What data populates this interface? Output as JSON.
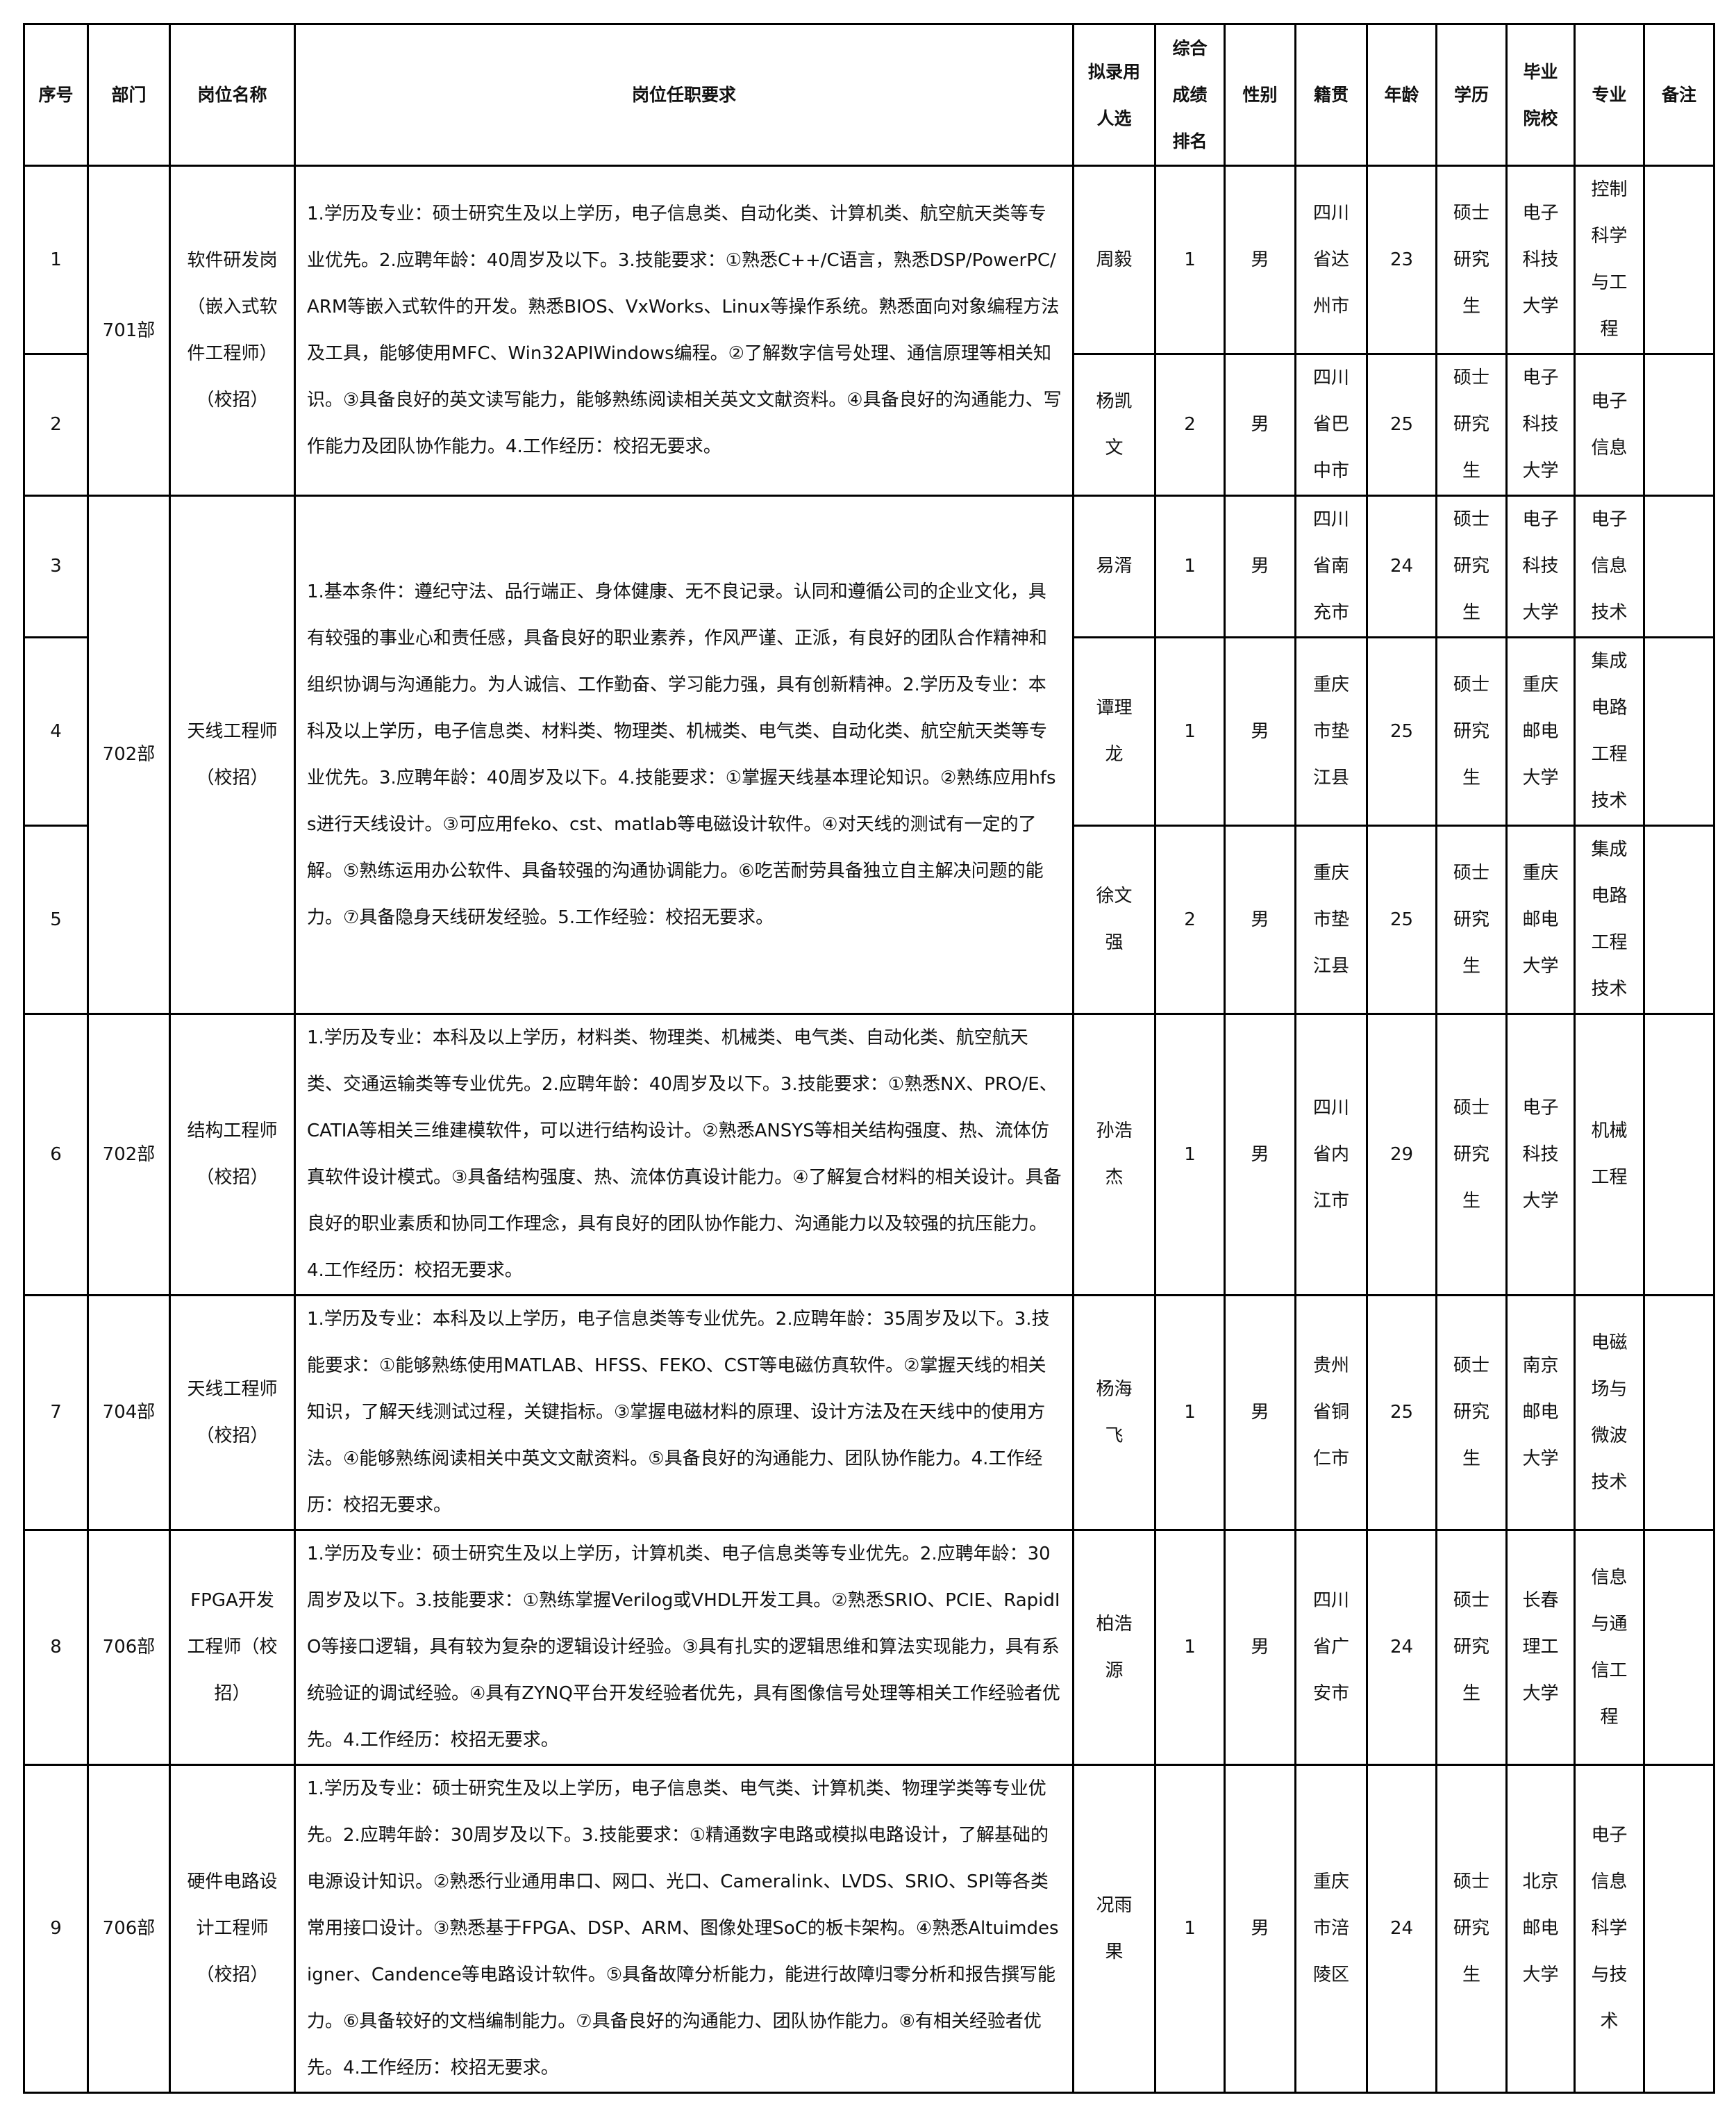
{
  "headers": [
    "序号",
    "部门",
    "岗位名称",
    "岗位任职要求",
    "拟录用人选",
    "综合成绩排名",
    "性别",
    "籍贯",
    "年龄",
    "学历",
    "毕业院校",
    "专业",
    "备注"
  ],
  "groups": [
    {
      "dept": "701部",
      "position": "软件研发岗（嵌入式软件工程师）（校招）",
      "requirement": "1.学历及专业：硕士研究生及以上学历，电子信息类、自动化类、计算机类、航空航天类等专业优先。2.应聘年龄：40周岁及以下。3.技能要求：①熟悉C++/C语言，熟悉DSP/PowerPC/ARM等嵌入式软件的开发。熟悉BIOS、VxWorks、Linux等操作系统。熟悉面向对象编程方法及工具，能够使用MFC、Win32APIWindows编程。②了解数字信号处理、通信原理等相关知识。③具备良好的英文读写能力，能够熟练阅读相关英文文献资料。④具备良好的沟通能力、写作能力及团队协作能力。4.工作经历：校招无要求。",
      "rows": [
        {
          "no": "1",
          "name": "周毅",
          "rank": "1",
          "gender": "男",
          "origin": "四川省达州市",
          "age": "23",
          "edu": "硕士研究生",
          "school": "电子科技大学",
          "major": "控制科学与工程",
          "note": ""
        },
        {
          "no": "2",
          "name": "杨凯文",
          "rank": "2",
          "gender": "男",
          "origin": "四川省巴中市",
          "age": "25",
          "edu": "硕士研究生",
          "school": "电子科技大学",
          "major": "电子信息",
          "note": ""
        }
      ]
    },
    {
      "dept": "702部",
      "position": "天线工程师（校招）",
      "requirement": "1.基本条件：遵纪守法、品行端正、身体健康、无不良记录。认同和遵循公司的企业文化，具有较强的事业心和责任感，具备良好的职业素养，作风严谨、正派，有良好的团队合作精神和组织协调与沟通能力。为人诚信、工作勤奋、学习能力强，具有创新精神。2.学历及专业：本科及以上学历，电子信息类、材料类、物理类、机械类、电气类、自动化类、航空航天类等专业优先。3.应聘年龄：40周岁及以下。4.技能要求：①掌握天线基本理论知识。②熟练应用hfss进行天线设计。③可应用feko、cst、matlab等电磁设计软件。④对天线的测试有一定的了解。⑤熟练运用办公软件、具备较强的沟通协调能力。⑥吃苦耐劳具备独立自主解决问题的能力。⑦具备隐身天线研发经验。5.工作经验：校招无要求。",
      "rows": [
        {
          "no": "3",
          "name": "易湑",
          "rank": "1",
          "gender": "男",
          "origin": "四川省南充市",
          "age": "24",
          "edu": "硕士研究生",
          "school": "电子科技大学",
          "major": "电子信息技术",
          "note": ""
        },
        {
          "no": "4",
          "name": "谭理龙",
          "rank": "1",
          "gender": "男",
          "origin": "重庆市垫江县",
          "age": "25",
          "edu": "硕士研究生",
          "school": "重庆邮电大学",
          "major": "集成电路工程技术",
          "note": ""
        },
        {
          "no": "5",
          "name": "徐文强",
          "rank": "2",
          "gender": "男",
          "origin": "重庆市垫江县",
          "age": "25",
          "edu": "硕士研究生",
          "school": "重庆邮电大学",
          "major": "集成电路工程技术",
          "note": ""
        }
      ]
    },
    {
      "dept": "702部",
      "position": "结构工程师（校招）",
      "requirement": "1.学历及专业：本科及以上学历，材料类、物理类、机械类、电气类、自动化类、航空航天类、交通运输类等专业优先。2.应聘年龄：40周岁及以下。3.技能要求：①熟悉NX、PRO/E、CATIA等相关三维建模软件，可以进行结构设计。②熟悉ANSYS等相关结构强度、热、流体仿真软件设计模式。③具备结构强度、热、流体仿真设计能力。④了解复合材料的相关设计。具备良好的职业素质和协同工作理念，具有良好的团队协作能力、沟通能力以及较强的抗压能力。4.工作经历：校招无要求。",
      "rows": [
        {
          "no": "6",
          "name": "孙浩杰",
          "rank": "1",
          "gender": "男",
          "origin": "四川省内江市",
          "age": "29",
          "edu": "硕士研究生",
          "school": "电子科技大学",
          "major": "机械工程",
          "note": ""
        }
      ]
    },
    {
      "dept": "704部",
      "position": "天线工程师（校招）",
      "requirement": "1.学历及专业：本科及以上学历，电子信息类等专业优先。2.应聘年龄：35周岁及以下。3.技能要求：①能够熟练使用MATLAB、HFSS、FEKO、CST等电磁仿真软件。②掌握天线的相关知识，了解天线测试过程，关键指标。③掌握电磁材料的原理、设计方法及在天线中的使用方法。④能够熟练阅读相关中英文文献资料。⑤具备良好的沟通能力、团队协作能力。4.工作经历：校招无要求。",
      "rows": [
        {
          "no": "7",
          "name": "杨海飞",
          "rank": "1",
          "gender": "男",
          "origin": "贵州省铜仁市",
          "age": "25",
          "edu": "硕士研究生",
          "school": "南京邮电大学",
          "major": "电磁场与微波技术",
          "note": ""
        }
      ]
    },
    {
      "dept": "706部",
      "position": "FPGA开发工程师（校招）",
      "requirement": "1.学历及专业：硕士研究生及以上学历，计算机类、电子信息类等专业优先。2.应聘年龄：30周岁及以下。3.技能要求：①熟练掌握Verilog或VHDL开发工具。②熟悉SRIO、PCIE、RapidIO等接口逻辑，具有较为复杂的逻辑设计经验。③具有扎实的逻辑思维和算法实现能力，具有系统验证的调试经验。④具有ZYNQ平台开发经验者优先，具有图像信号处理等相关工作经验者优先。4.工作经历：校招无要求。",
      "rows": [
        {
          "no": "8",
          "name": "柏浩源",
          "rank": "1",
          "gender": "男",
          "origin": "四川省广安市",
          "age": "24",
          "edu": "硕士研究生",
          "school": "长春理工大学",
          "major": "信息与通信工程",
          "note": ""
        }
      ]
    },
    {
      "dept": "706部",
      "position": "硬件电路设计工程师（校招）",
      "requirement": "1.学历及专业：硕士研究生及以上学历，电子信息类、电气类、计算机类、物理学类等专业优先。2.应聘年龄：30周岁及以下。3.技能要求：①精通数字电路或模拟电路设计，了解基础的电源设计知识。②熟悉行业通用串口、网口、光口、Cameralink、LVDS、SRIO、SPI等各类常用接口设计。③熟悉基于FPGA、DSP、ARM、图像处理SoC的板卡架构。④熟悉Altuimdesigner、Candence等电路设计软件。⑤具备故障分析能力，能进行故障归零分析和报告撰写能力。⑥具备较好的文档编制能力。⑦具备良好的沟通能力、团队协作能力。⑧有相关经验者优先。4.工作经历：校招无要求。",
      "rows": [
        {
          "no": "9",
          "name": "况雨果",
          "rank": "1",
          "gender": "男",
          "origin": "重庆市涪陵区",
          "age": "24",
          "edu": "硕士研究生",
          "school": "北京邮电大学",
          "major": "电子信息科学与技术",
          "note": ""
        }
      ]
    }
  ]
}
